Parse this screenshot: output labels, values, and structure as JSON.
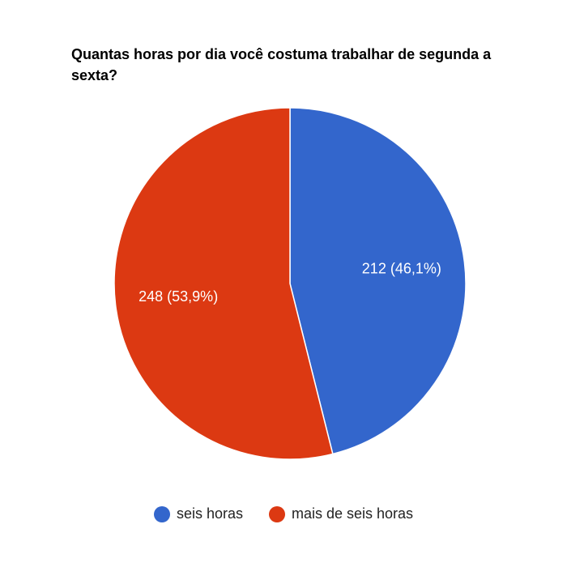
{
  "chart_data": {
    "type": "pie",
    "title": "Quantas horas por dia você costuma trabalhar de segunda a sexta?",
    "legend_position": "bottom",
    "series": [
      {
        "name": "seis horas",
        "value": 212,
        "label": "212 (46,1%)",
        "color": "#3366cc"
      },
      {
        "name": "mais de seis horas",
        "value": 248,
        "label": "248 (53,9%)",
        "color": "#dc3912"
      }
    ]
  }
}
